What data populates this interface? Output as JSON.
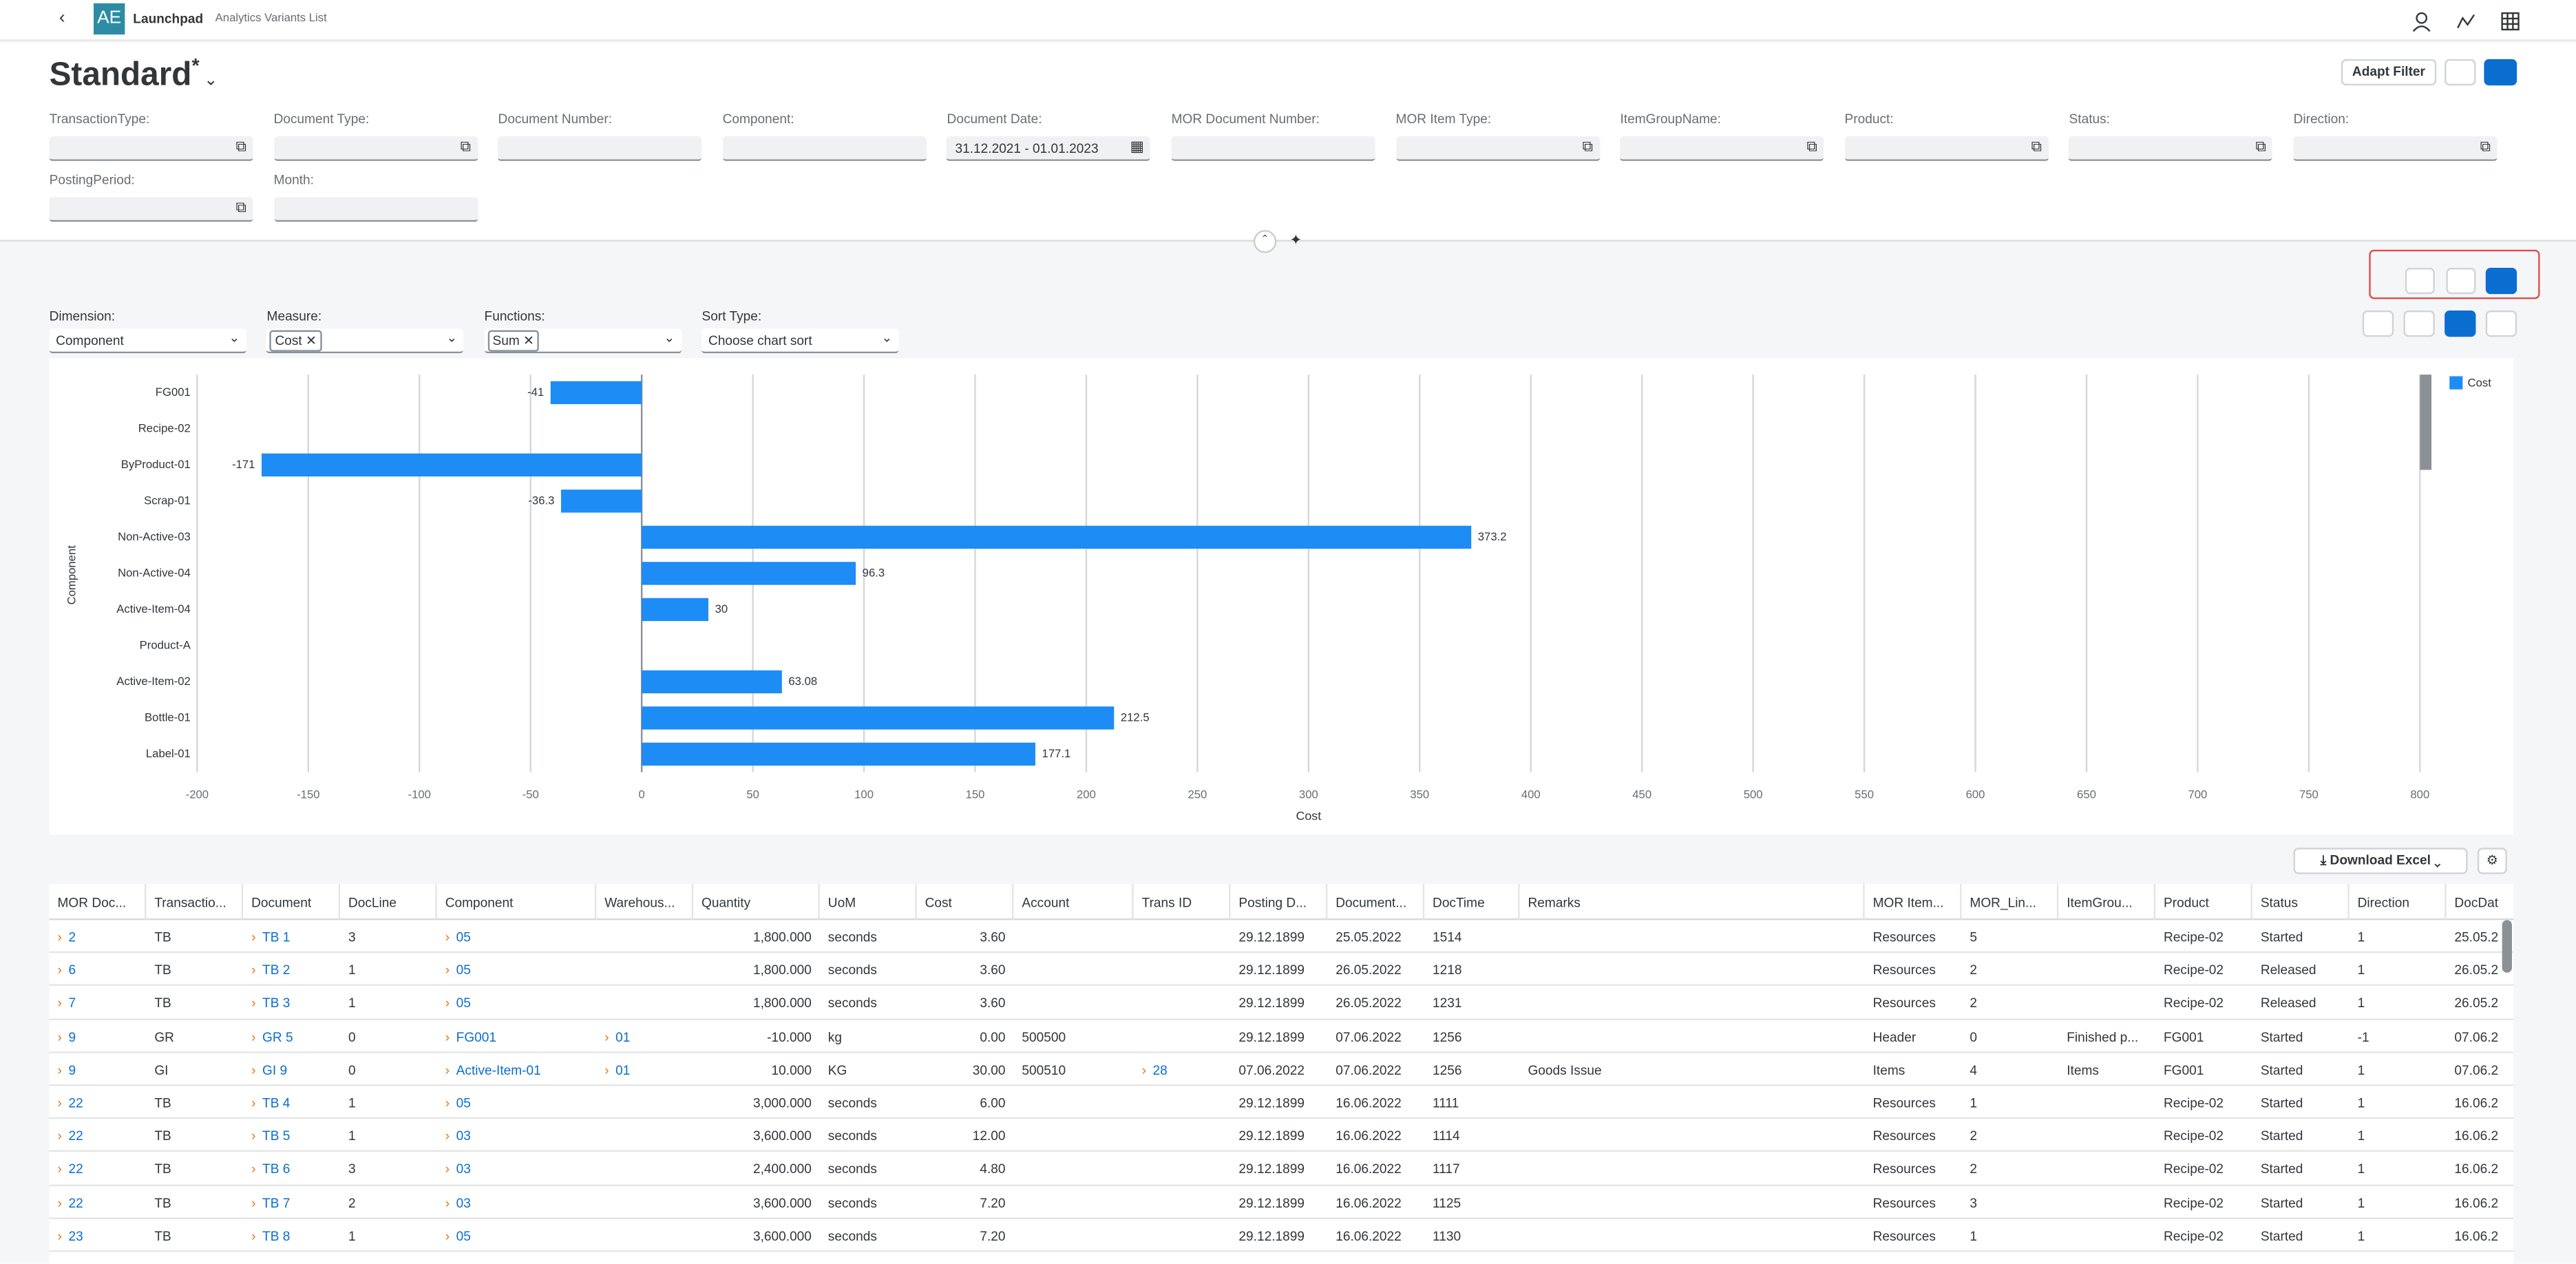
{
  "header": {
    "app": "Launchpad",
    "subtitle": "Analytics Variants List",
    "logo": "AE"
  },
  "variant": {
    "title": "Standard",
    "modified": "*"
  },
  "buttons": {
    "adapt_filter": "Adapt Filter",
    "download": "Download Excel"
  },
  "filters": [
    {
      "label": "TransactionType:",
      "icon": "value-help"
    },
    {
      "label": "Document Type:",
      "icon": "value-help"
    },
    {
      "label": "Document Number:"
    },
    {
      "label": "Component:"
    },
    {
      "label": "Document Date:",
      "value": "31.12.2021 - 01.01.2023",
      "icon": "calendar"
    },
    {
      "label": "MOR Document Number:"
    },
    {
      "label": "MOR Item Type:",
      "icon": "value-help"
    },
    {
      "label": "ItemGroupName:",
      "icon": "value-help"
    },
    {
      "label": "Product:",
      "icon": "value-help"
    },
    {
      "label": "Status:",
      "icon": "value-help"
    },
    {
      "label": "Direction:",
      "icon": "value-help"
    },
    {
      "label": "PostingPeriod:",
      "icon": "value-help"
    },
    {
      "label": "Month:"
    }
  ],
  "chart_controls": [
    {
      "label": "Dimension:",
      "value": "Component"
    },
    {
      "label": "Measure:",
      "token": "Cost"
    },
    {
      "label": "Functions:",
      "token": "Sum"
    },
    {
      "label": "Sort Type:",
      "placeholder": "Choose chart sort"
    }
  ],
  "chart_data": {
    "type": "bar",
    "orientation": "horizontal",
    "xlabel": "Cost",
    "ylabel": "Component",
    "categories": [
      "FG001",
      "Recipe-02",
      "ByProduct-01",
      "Scrap-01",
      "Non-Active-03",
      "Non-Active-04",
      "Active-Item-04",
      "Product-A",
      "Active-Item-02",
      "Bottle-01",
      "Label-01"
    ],
    "series": [
      {
        "name": "Cost",
        "color": "#1e8cf5",
        "values": [
          -41,
          null,
          -171,
          -36.3,
          373.2,
          96.3,
          30,
          null,
          63.08,
          212.5,
          177.1
        ]
      }
    ],
    "xlim": [
      -200,
      800
    ],
    "xticks": [
      -200,
      -150,
      -100,
      -50,
      0,
      50,
      100,
      150,
      200,
      250,
      300,
      350,
      400,
      450,
      500,
      550,
      600,
      650,
      700,
      750,
      800
    ],
    "grid": true,
    "legend": "top-right"
  },
  "table": {
    "columns": [
      {
        "label": "MOR Doc...",
        "link": true
      },
      {
        "label": "Transactio..."
      },
      {
        "label": "Document",
        "link": true
      },
      {
        "label": "DocLine"
      },
      {
        "label": "Component",
        "link": true
      },
      {
        "label": "Warehous...",
        "link": true
      },
      {
        "label": "Quantity",
        "align": "right"
      },
      {
        "label": "UoM"
      },
      {
        "label": "Cost",
        "align": "right"
      },
      {
        "label": "Account"
      },
      {
        "label": "Trans ID",
        "link": true
      },
      {
        "label": "Posting D..."
      },
      {
        "label": "Document..."
      },
      {
        "label": "DocTime"
      },
      {
        "label": "Remarks"
      },
      {
        "label": "MOR Item..."
      },
      {
        "label": "MOR_Lin..."
      },
      {
        "label": "ItemGrou..."
      },
      {
        "label": "Product"
      },
      {
        "label": "Status"
      },
      {
        "label": "Direction"
      },
      {
        "label": "DocDat"
      }
    ],
    "rows": [
      [
        "2",
        "TB",
        "TB 1",
        "3",
        "05",
        null,
        "1,800.000",
        "seconds",
        "3.60",
        null,
        null,
        "29.12.1899",
        "25.05.2022",
        "1514",
        null,
        "Resources",
        "5",
        null,
        "Recipe-02",
        "Started",
        "1",
        "25.05.2"
      ],
      [
        "6",
        "TB",
        "TB 2",
        "1",
        "05",
        null,
        "1,800.000",
        "seconds",
        "3.60",
        null,
        null,
        "29.12.1899",
        "26.05.2022",
        "1218",
        null,
        "Resources",
        "2",
        null,
        "Recipe-02",
        "Released",
        "1",
        "26.05.2"
      ],
      [
        "7",
        "TB",
        "TB 3",
        "1",
        "05",
        null,
        "1,800.000",
        "seconds",
        "3.60",
        null,
        null,
        "29.12.1899",
        "26.05.2022",
        "1231",
        null,
        "Resources",
        "2",
        null,
        "Recipe-02",
        "Released",
        "1",
        "26.05.2"
      ],
      [
        "9",
        "GR",
        "GR 5",
        "0",
        "FG001",
        "01",
        "-10.000",
        "kg",
        "0.00",
        "500500",
        null,
        "29.12.1899",
        "07.06.2022",
        "1256",
        null,
        "Header",
        "0",
        "Finished p...",
        "FG001",
        "Started",
        "-1",
        "07.06.2"
      ],
      [
        "9",
        "GI",
        "GI 9",
        "0",
        "Active-Item-01",
        "01",
        "10.000",
        "KG",
        "30.00",
        "500510",
        "28",
        "07.06.2022",
        "07.06.2022",
        "1256",
        "Goods Issue",
        "Items",
        "4",
        "Items",
        "FG001",
        "Started",
        "1",
        "07.06.2"
      ],
      [
        "22",
        "TB",
        "TB 4",
        "1",
        "05",
        null,
        "3,000.000",
        "seconds",
        "6.00",
        null,
        null,
        "29.12.1899",
        "16.06.2022",
        "1111",
        null,
        "Resources",
        "1",
        null,
        "Recipe-02",
        "Started",
        "1",
        "16.06.2"
      ],
      [
        "22",
        "TB",
        "TB 5",
        "1",
        "03",
        null,
        "3,600.000",
        "seconds",
        "12.00",
        null,
        null,
        "29.12.1899",
        "16.06.2022",
        "1114",
        null,
        "Resources",
        "2",
        null,
        "Recipe-02",
        "Started",
        "1",
        "16.06.2"
      ],
      [
        "22",
        "TB",
        "TB 6",
        "3",
        "03",
        null,
        "2,400.000",
        "seconds",
        "4.80",
        null,
        null,
        "29.12.1899",
        "16.06.2022",
        "1117",
        null,
        "Resources",
        "2",
        null,
        "Recipe-02",
        "Started",
        "1",
        "16.06.2"
      ],
      [
        "22",
        "TB",
        "TB 7",
        "2",
        "03",
        null,
        "3,600.000",
        "seconds",
        "7.20",
        null,
        null,
        "29.12.1899",
        "16.06.2022",
        "1125",
        null,
        "Resources",
        "3",
        null,
        "Recipe-02",
        "Started",
        "1",
        "16.06.2"
      ],
      [
        "23",
        "TB",
        "TB 8",
        "1",
        "05",
        null,
        "3,600.000",
        "seconds",
        "7.20",
        null,
        null,
        "29.12.1899",
        "16.06.2022",
        "1130",
        null,
        "Resources",
        "1",
        null,
        "Recipe-02",
        "Started",
        "1",
        "16.06.2"
      ]
    ]
  }
}
